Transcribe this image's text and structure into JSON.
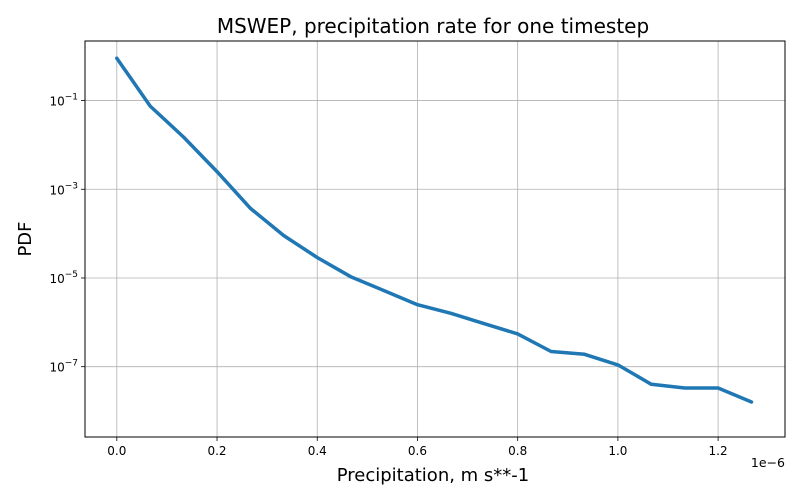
{
  "chart_data": {
    "type": "line",
    "title": "MSWEP, precipitation rate for one timestep",
    "xlabel": "Precipitation, m s**-1",
    "ylabel": "PDF",
    "x_offset_label": "1e−6",
    "y_scale": "log",
    "grid": true,
    "xlim": [
      -6.35e-08,
      1.3335e-06
    ],
    "ylim": [
      2.6e-09,
      2.2
    ],
    "x_ticks": [
      {
        "value": 0.0,
        "label": "0.0"
      },
      {
        "value": 2e-07,
        "label": "0.2"
      },
      {
        "value": 4e-07,
        "label": "0.4"
      },
      {
        "value": 6e-07,
        "label": "0.6"
      },
      {
        "value": 8e-07,
        "label": "0.8"
      },
      {
        "value": 1e-06,
        "label": "1.0"
      },
      {
        "value": 1.2e-06,
        "label": "1.2"
      }
    ],
    "y_ticks": [
      {
        "value": 0.1,
        "exp": "−1"
      },
      {
        "value": 0.001,
        "exp": "−3"
      },
      {
        "value": 1e-05,
        "exp": "−5"
      },
      {
        "value": 1e-07,
        "exp": "−7"
      }
    ],
    "series": [
      {
        "color": "#1f77b4",
        "x": [
          0.0,
          6.67e-08,
          1.333e-07,
          2e-07,
          2.667e-07,
          3.333e-07,
          4e-07,
          4.667e-07,
          5.333e-07,
          6e-07,
          6.667e-07,
          7.333e-07,
          8e-07,
          8.667e-07,
          9.333e-07,
          1e-06,
          1.0667e-06,
          1.1333e-06,
          1.2e-06,
          1.2667e-06
        ],
        "y": [
          0.9,
          0.075,
          0.015,
          0.0025,
          0.00037,
          9e-05,
          2.9e-05,
          1.07e-05,
          5.2e-06,
          2.5e-06,
          1.6e-06,
          9.3e-07,
          5.5e-07,
          2.2e-07,
          1.9e-07,
          1.1e-07,
          4e-08,
          3.3e-08,
          3.3e-08,
          1.6e-08
        ]
      }
    ]
  }
}
